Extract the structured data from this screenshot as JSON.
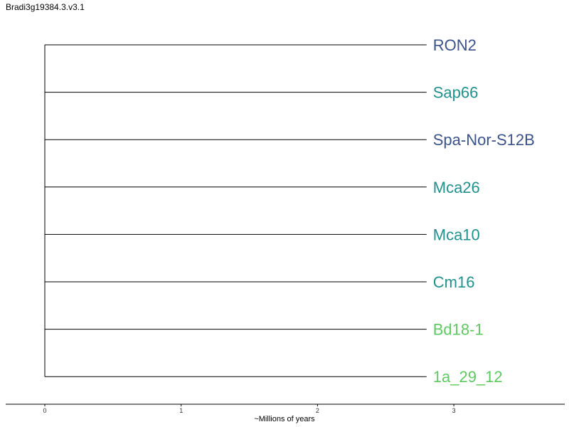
{
  "title": "Bradi3g19384.3.v3.1",
  "chart_data": {
    "type": "dendrogram",
    "xlabel": "~Millions of years",
    "xticks": [
      0,
      1,
      2,
      3
    ],
    "tips": [
      {
        "label": "RON2",
        "color": "#3b528b"
      },
      {
        "label": "Sap66",
        "color": "#21918c"
      },
      {
        "label": "Spa-Nor-S12B",
        "color": "#3b528b"
      },
      {
        "label": "Mca26",
        "color": "#21918c"
      },
      {
        "label": "Mca10",
        "color": "#21918c"
      },
      {
        "label": "Cm16",
        "color": "#21918c"
      },
      {
        "label": "Bd18-1",
        "color": "#5ec962"
      },
      {
        "label": "1a_29_12",
        "color": "#5ec962"
      }
    ],
    "branch_length": 2.8
  }
}
